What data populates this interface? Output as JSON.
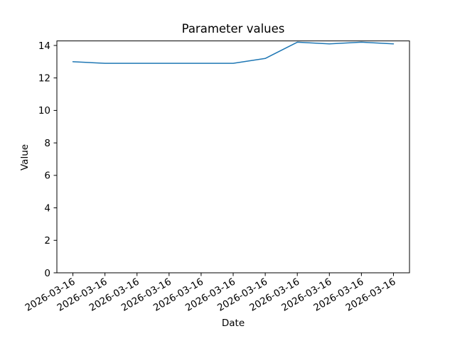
{
  "figure": {
    "title": "Parameter values",
    "xlabel": "Date",
    "ylabel": "Value"
  },
  "chart_data": {
    "type": "line",
    "title": "Parameter values",
    "xlabel": "Date",
    "ylabel": "Value",
    "x_tick_labels": [
      "2026-03-16",
      "2026-03-16",
      "2026-03-16",
      "2026-03-16",
      "2026-03-16",
      "2026-03-16",
      "2026-03-16",
      "2026-03-16",
      "2026-03-16",
      "2026-03-16",
      "2026-03-16"
    ],
    "x_tick_rotation": 30,
    "y_ticks": [
      0,
      2,
      4,
      6,
      8,
      10,
      12,
      14
    ],
    "ylim": [
      0,
      14.28
    ],
    "series": [
      {
        "name": "parameter-values",
        "values": [
          13.0,
          12.9,
          12.9,
          12.9,
          12.9,
          12.9,
          13.2,
          14.2,
          14.1,
          14.2,
          14.1
        ]
      }
    ],
    "line_color": "#1f77b4",
    "grid": false,
    "legend_position": "none",
    "background_color": "#ffffff"
  }
}
